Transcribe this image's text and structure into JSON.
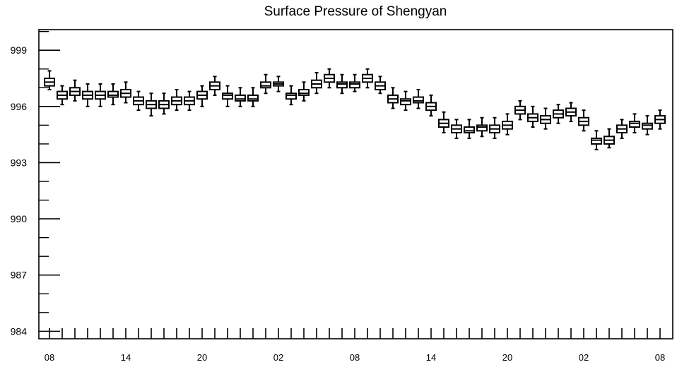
{
  "chart_data": {
    "type": "boxplot",
    "title": "Surface Pressure of Shengyan",
    "xlabel": "",
    "ylabel": "",
    "ylim": [
      983.6,
      1000.1
    ],
    "yticks": [
      984,
      987,
      990,
      993,
      996,
      999
    ],
    "xtick_labels": [
      "08",
      "14",
      "20",
      "02",
      "08",
      "14",
      "20",
      "02",
      "08"
    ],
    "xtick_label_positions": [
      0,
      6,
      12,
      18,
      24,
      30,
      36,
      42,
      48
    ],
    "grid": false,
    "legend": "none",
    "colors": {
      "box": "#000000",
      "background": "#ffffff"
    },
    "boxes": [
      {
        "x": 0,
        "min": 996.9,
        "q1": 997.1,
        "median": 997.3,
        "q3": 997.5,
        "max": 997.9
      },
      {
        "x": 1,
        "min": 996.1,
        "q1": 996.4,
        "median": 996.6,
        "q3": 996.8,
        "max": 997.1
      },
      {
        "x": 2,
        "min": 996.3,
        "q1": 996.6,
        "median": 996.8,
        "q3": 997.0,
        "max": 997.4
      },
      {
        "x": 3,
        "min": 996.0,
        "q1": 996.4,
        "median": 996.6,
        "q3": 996.8,
        "max": 997.2
      },
      {
        "x": 4,
        "min": 996.0,
        "q1": 996.4,
        "median": 996.6,
        "q3": 996.8,
        "max": 997.2
      },
      {
        "x": 5,
        "min": 996.1,
        "q1": 996.5,
        "median": 996.6,
        "q3": 996.8,
        "max": 997.2
      },
      {
        "x": 6,
        "min": 996.2,
        "q1": 996.5,
        "median": 996.7,
        "q3": 996.9,
        "max": 997.3
      },
      {
        "x": 7,
        "min": 995.8,
        "q1": 996.1,
        "median": 996.3,
        "q3": 996.5,
        "max": 996.8
      },
      {
        "x": 8,
        "min": 995.5,
        "q1": 995.9,
        "median": 996.1,
        "q3": 996.3,
        "max": 996.7
      },
      {
        "x": 9,
        "min": 995.6,
        "q1": 995.9,
        "median": 996.1,
        "q3": 996.3,
        "max": 996.7
      },
      {
        "x": 10,
        "min": 995.8,
        "q1": 996.1,
        "median": 996.3,
        "q3": 996.5,
        "max": 996.9
      },
      {
        "x": 11,
        "min": 995.8,
        "q1": 996.1,
        "median": 996.3,
        "q3": 996.5,
        "max": 996.8
      },
      {
        "x": 12,
        "min": 996.0,
        "q1": 996.4,
        "median": 996.6,
        "q3": 996.8,
        "max": 997.1
      },
      {
        "x": 13,
        "min": 996.6,
        "q1": 996.9,
        "median": 997.1,
        "q3": 997.3,
        "max": 997.6
      },
      {
        "x": 14,
        "min": 996.0,
        "q1": 996.4,
        "median": 996.6,
        "q3": 996.7,
        "max": 997.1
      },
      {
        "x": 15,
        "min": 996.0,
        "q1": 996.3,
        "median": 996.4,
        "q3": 996.6,
        "max": 997.0
      },
      {
        "x": 16,
        "min": 996.0,
        "q1": 996.3,
        "median": 996.4,
        "q3": 996.6,
        "max": 997.0
      },
      {
        "x": 17,
        "min": 996.7,
        "q1": 997.0,
        "median": 997.1,
        "q3": 997.3,
        "max": 997.7
      },
      {
        "x": 18,
        "min": 996.8,
        "q1": 997.1,
        "median": 997.2,
        "q3": 997.3,
        "max": 997.6
      },
      {
        "x": 19,
        "min": 996.1,
        "q1": 996.4,
        "median": 996.6,
        "q3": 996.7,
        "max": 997.1
      },
      {
        "x": 20,
        "min": 996.3,
        "q1": 996.6,
        "median": 996.7,
        "q3": 996.9,
        "max": 997.3
      },
      {
        "x": 21,
        "min": 996.7,
        "q1": 997.0,
        "median": 997.2,
        "q3": 997.4,
        "max": 997.8
      },
      {
        "x": 22,
        "min": 997.0,
        "q1": 997.3,
        "median": 997.5,
        "q3": 997.7,
        "max": 998.0
      },
      {
        "x": 23,
        "min": 996.7,
        "q1": 997.0,
        "median": 997.2,
        "q3": 997.3,
        "max": 997.7
      },
      {
        "x": 24,
        "min": 996.8,
        "q1": 997.0,
        "median": 997.2,
        "q3": 997.3,
        "max": 997.7
      },
      {
        "x": 25,
        "min": 997.0,
        "q1": 997.3,
        "median": 997.5,
        "q3": 997.7,
        "max": 998.0
      },
      {
        "x": 26,
        "min": 996.7,
        "q1": 996.9,
        "median": 997.1,
        "q3": 997.3,
        "max": 997.6
      },
      {
        "x": 27,
        "min": 995.9,
        "q1": 996.2,
        "median": 996.4,
        "q3": 996.6,
        "max": 997.0
      },
      {
        "x": 28,
        "min": 995.8,
        "q1": 996.1,
        "median": 996.3,
        "q3": 996.4,
        "max": 996.8
      },
      {
        "x": 29,
        "min": 995.9,
        "q1": 996.2,
        "median": 996.3,
        "q3": 996.5,
        "max": 996.9
      },
      {
        "x": 30,
        "min": 995.5,
        "q1": 995.8,
        "median": 996.0,
        "q3": 996.2,
        "max": 996.6
      },
      {
        "x": 31,
        "min": 994.6,
        "q1": 994.9,
        "median": 995.1,
        "q3": 995.3,
        "max": 995.7
      },
      {
        "x": 32,
        "min": 994.3,
        "q1": 994.6,
        "median": 994.8,
        "q3": 995.0,
        "max": 995.3
      },
      {
        "x": 33,
        "min": 994.3,
        "q1": 994.6,
        "median": 994.7,
        "q3": 994.9,
        "max": 995.3
      },
      {
        "x": 34,
        "min": 994.4,
        "q1": 994.7,
        "median": 994.9,
        "q3": 995.0,
        "max": 995.4
      },
      {
        "x": 35,
        "min": 994.3,
        "q1": 994.6,
        "median": 994.8,
        "q3": 995.0,
        "max": 995.4
      },
      {
        "x": 36,
        "min": 994.5,
        "q1": 994.8,
        "median": 995.0,
        "q3": 995.2,
        "max": 995.6
      },
      {
        "x": 37,
        "min": 995.3,
        "q1": 995.6,
        "median": 995.8,
        "q3": 996.0,
        "max": 996.3
      },
      {
        "x": 38,
        "min": 994.9,
        "q1": 995.2,
        "median": 995.4,
        "q3": 995.6,
        "max": 996.0
      },
      {
        "x": 39,
        "min": 994.8,
        "q1": 995.1,
        "median": 995.3,
        "q3": 995.5,
        "max": 995.9
      },
      {
        "x": 40,
        "min": 995.1,
        "q1": 995.4,
        "median": 995.6,
        "q3": 995.8,
        "max": 996.1
      },
      {
        "x": 41,
        "min": 995.2,
        "q1": 995.5,
        "median": 995.7,
        "q3": 995.9,
        "max": 996.2
      },
      {
        "x": 42,
        "min": 994.7,
        "q1": 995.0,
        "median": 995.2,
        "q3": 995.4,
        "max": 995.8
      },
      {
        "x": 43,
        "min": 993.7,
        "q1": 994.0,
        "median": 994.2,
        "q3": 994.3,
        "max": 994.7
      },
      {
        "x": 44,
        "min": 993.8,
        "q1": 994.0,
        "median": 994.2,
        "q3": 994.4,
        "max": 994.8
      },
      {
        "x": 45,
        "min": 994.3,
        "q1": 994.6,
        "median": 994.8,
        "q3": 995.0,
        "max": 995.3
      },
      {
        "x": 46,
        "min": 994.6,
        "q1": 994.9,
        "median": 995.1,
        "q3": 995.2,
        "max": 995.6
      },
      {
        "x": 47,
        "min": 994.5,
        "q1": 994.8,
        "median": 995.0,
        "q3": 995.1,
        "max": 995.5
      },
      {
        "x": 48,
        "min": 994.8,
        "q1": 995.1,
        "median": 995.3,
        "q3": 995.5,
        "max": 995.8
      }
    ]
  }
}
